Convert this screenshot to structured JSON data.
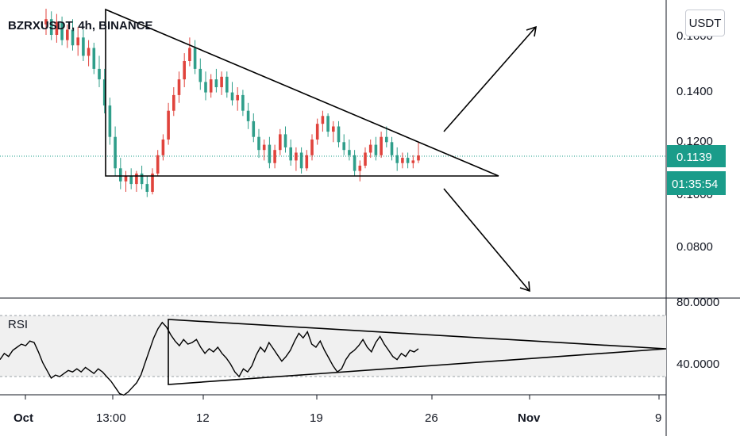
{
  "header": {
    "title": "BZRXUSDT, 4h, BINANCE",
    "currency_button": "USDT"
  },
  "colors": {
    "up": "#e0433c",
    "down": "#2f9e8a",
    "price_label_bg": "#1a9c8a",
    "drawing": "#000000",
    "rsi_line": "#000000",
    "rsi_band_bg": "#f0f0f0"
  },
  "chart_data": [
    {
      "type": "candlestick",
      "title": "BZRXUSDT, 4h, BINANCE",
      "y_ticks": [
        "0.1600",
        "0.1400",
        "0.1200",
        "0.1000",
        "0.0800"
      ],
      "last_price": "0.1139",
      "countdown": "01:35:54",
      "x_ticks": [
        "Oct",
        "13:00",
        "12",
        "19",
        "26",
        "Nov",
        "9"
      ],
      "candles": [
        {
          "o": 0.164,
          "h": 0.17,
          "l": 0.16,
          "c": 0.166
        },
        {
          "o": 0.166,
          "h": 0.169,
          "l": 0.158,
          "c": 0.16
        },
        {
          "o": 0.16,
          "h": 0.168,
          "l": 0.157,
          "c": 0.165
        },
        {
          "o": 0.165,
          "h": 0.167,
          "l": 0.156,
          "c": 0.158
        },
        {
          "o": 0.158,
          "h": 0.164,
          "l": 0.155,
          "c": 0.162
        },
        {
          "o": 0.162,
          "h": 0.166,
          "l": 0.154,
          "c": 0.156
        },
        {
          "o": 0.156,
          "h": 0.163,
          "l": 0.152,
          "c": 0.159
        },
        {
          "o": 0.159,
          "h": 0.162,
          "l": 0.15,
          "c": 0.152
        },
        {
          "o": 0.152,
          "h": 0.158,
          "l": 0.148,
          "c": 0.155
        },
        {
          "o": 0.155,
          "h": 0.157,
          "l": 0.145,
          "c": 0.147
        },
        {
          "o": 0.147,
          "h": 0.152,
          "l": 0.14,
          "c": 0.143
        },
        {
          "o": 0.143,
          "h": 0.147,
          "l": 0.13,
          "c": 0.133
        },
        {
          "o": 0.133,
          "h": 0.136,
          "l": 0.118,
          "c": 0.121
        },
        {
          "o": 0.121,
          "h": 0.125,
          "l": 0.106,
          "c": 0.109
        },
        {
          "o": 0.109,
          "h": 0.113,
          "l": 0.101,
          "c": 0.104
        },
        {
          "o": 0.104,
          "h": 0.108,
          "l": 0.1,
          "c": 0.106
        },
        {
          "o": 0.106,
          "h": 0.109,
          "l": 0.101,
          "c": 0.103
        },
        {
          "o": 0.103,
          "h": 0.108,
          "l": 0.1,
          "c": 0.107
        },
        {
          "o": 0.107,
          "h": 0.11,
          "l": 0.101,
          "c": 0.103
        },
        {
          "o": 0.103,
          "h": 0.106,
          "l": 0.098,
          "c": 0.1
        },
        {
          "o": 0.1,
          "h": 0.109,
          "l": 0.099,
          "c": 0.107
        },
        {
          "o": 0.107,
          "h": 0.116,
          "l": 0.106,
          "c": 0.114
        },
        {
          "o": 0.114,
          "h": 0.122,
          "l": 0.112,
          "c": 0.12
        },
        {
          "o": 0.12,
          "h": 0.134,
          "l": 0.118,
          "c": 0.131
        },
        {
          "o": 0.131,
          "h": 0.14,
          "l": 0.129,
          "c": 0.137
        },
        {
          "o": 0.137,
          "h": 0.146,
          "l": 0.134,
          "c": 0.143
        },
        {
          "o": 0.143,
          "h": 0.153,
          "l": 0.14,
          "c": 0.15
        },
        {
          "o": 0.15,
          "h": 0.159,
          "l": 0.148,
          "c": 0.155
        },
        {
          "o": 0.155,
          "h": 0.158,
          "l": 0.145,
          "c": 0.147
        },
        {
          "o": 0.147,
          "h": 0.151,
          "l": 0.139,
          "c": 0.142
        },
        {
          "o": 0.142,
          "h": 0.146,
          "l": 0.135,
          "c": 0.138
        },
        {
          "o": 0.138,
          "h": 0.145,
          "l": 0.136,
          "c": 0.143
        },
        {
          "o": 0.143,
          "h": 0.147,
          "l": 0.138,
          "c": 0.14
        },
        {
          "o": 0.14,
          "h": 0.146,
          "l": 0.137,
          "c": 0.144
        },
        {
          "o": 0.144,
          "h": 0.146,
          "l": 0.136,
          "c": 0.138
        },
        {
          "o": 0.138,
          "h": 0.142,
          "l": 0.133,
          "c": 0.135
        },
        {
          "o": 0.135,
          "h": 0.14,
          "l": 0.131,
          "c": 0.137
        },
        {
          "o": 0.137,
          "h": 0.139,
          "l": 0.129,
          "c": 0.131
        },
        {
          "o": 0.131,
          "h": 0.134,
          "l": 0.124,
          "c": 0.127
        },
        {
          "o": 0.127,
          "h": 0.13,
          "l": 0.119,
          "c": 0.121
        },
        {
          "o": 0.121,
          "h": 0.124,
          "l": 0.113,
          "c": 0.116
        },
        {
          "o": 0.116,
          "h": 0.12,
          "l": 0.112,
          "c": 0.118
        },
        {
          "o": 0.118,
          "h": 0.121,
          "l": 0.109,
          "c": 0.111
        },
        {
          "o": 0.111,
          "h": 0.118,
          "l": 0.109,
          "c": 0.116
        },
        {
          "o": 0.116,
          "h": 0.124,
          "l": 0.114,
          "c": 0.122
        },
        {
          "o": 0.122,
          "h": 0.125,
          "l": 0.115,
          "c": 0.117
        },
        {
          "o": 0.117,
          "h": 0.12,
          "l": 0.11,
          "c": 0.112
        },
        {
          "o": 0.112,
          "h": 0.117,
          "l": 0.108,
          "c": 0.115
        },
        {
          "o": 0.115,
          "h": 0.117,
          "l": 0.107,
          "c": 0.109
        },
        {
          "o": 0.109,
          "h": 0.116,
          "l": 0.108,
          "c": 0.114
        },
        {
          "o": 0.114,
          "h": 0.122,
          "l": 0.112,
          "c": 0.12
        },
        {
          "o": 0.12,
          "h": 0.128,
          "l": 0.118,
          "c": 0.126
        },
        {
          "o": 0.126,
          "h": 0.131,
          "l": 0.123,
          "c": 0.129
        },
        {
          "o": 0.129,
          "h": 0.13,
          "l": 0.121,
          "c": 0.123
        },
        {
          "o": 0.123,
          "h": 0.127,
          "l": 0.119,
          "c": 0.125
        },
        {
          "o": 0.125,
          "h": 0.127,
          "l": 0.117,
          "c": 0.119
        },
        {
          "o": 0.119,
          "h": 0.122,
          "l": 0.114,
          "c": 0.116
        },
        {
          "o": 0.116,
          "h": 0.12,
          "l": 0.112,
          "c": 0.114
        },
        {
          "o": 0.114,
          "h": 0.116,
          "l": 0.106,
          "c": 0.108
        },
        {
          "o": 0.108,
          "h": 0.112,
          "l": 0.104,
          "c": 0.11
        },
        {
          "o": 0.11,
          "h": 0.117,
          "l": 0.109,
          "c": 0.115
        },
        {
          "o": 0.115,
          "h": 0.12,
          "l": 0.113,
          "c": 0.118
        },
        {
          "o": 0.118,
          "h": 0.121,
          "l": 0.112,
          "c": 0.114
        },
        {
          "o": 0.114,
          "h": 0.123,
          "l": 0.113,
          "c": 0.121
        },
        {
          "o": 0.121,
          "h": 0.125,
          "l": 0.117,
          "c": 0.119
        },
        {
          "o": 0.119,
          "h": 0.121,
          "l": 0.112,
          "c": 0.114
        },
        {
          "o": 0.114,
          "h": 0.117,
          "l": 0.108,
          "c": 0.111
        },
        {
          "o": 0.111,
          "h": 0.115,
          "l": 0.109,
          "c": 0.113
        },
        {
          "o": 0.113,
          "h": 0.115,
          "l": 0.109,
          "c": 0.111
        },
        {
          "o": 0.111,
          "h": 0.114,
          "l": 0.109,
          "c": 0.112
        },
        {
          "o": 0.112,
          "h": 0.119,
          "l": 0.111,
          "c": 0.1139
        }
      ]
    },
    {
      "type": "line",
      "title": "RSI",
      "y_ticks": [
        "80.0000",
        "40.0000"
      ],
      "bands": [
        70,
        30
      ],
      "x_ticks": [
        "Oct",
        "13:00",
        "12",
        "19",
        "26",
        "Nov",
        "9"
      ],
      "values": [
        42,
        46,
        44,
        48,
        50,
        52,
        51,
        54,
        53,
        47,
        40,
        35,
        30,
        32,
        31,
        33,
        35,
        34,
        36,
        34,
        37,
        35,
        33,
        36,
        34,
        31,
        28,
        24,
        20,
        19,
        21,
        24,
        27,
        32,
        40,
        48,
        56,
        62,
        66,
        63,
        58,
        54,
        51,
        55,
        52,
        53,
        55,
        50,
        46,
        49,
        47,
        50,
        46,
        43,
        39,
        34,
        31,
        36,
        34,
        38,
        45,
        50,
        47,
        53,
        49,
        45,
        41,
        44,
        48,
        54,
        59,
        56,
        60,
        52,
        50,
        54,
        48,
        43,
        38,
        34,
        36,
        42,
        46,
        48,
        51,
        55,
        50,
        47,
        53,
        57,
        52,
        48,
        44,
        42,
        46,
        44,
        48,
        47,
        49
      ]
    }
  ]
}
